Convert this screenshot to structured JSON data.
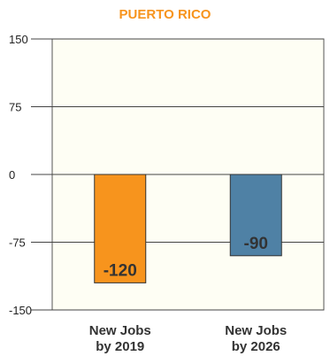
{
  "chart_data": {
    "type": "bar",
    "title": "PUERTO RICO",
    "title_color": "#F7941D",
    "categories": [
      [
        "New Jobs",
        "by 2019"
      ],
      [
        "New Jobs",
        "by 2026"
      ]
    ],
    "values": [
      -120,
      -90
    ],
    "data_labels": [
      "-120",
      "-90"
    ],
    "bar_colors": [
      "#F7941D",
      "#4F81A5"
    ],
    "ylim": [
      -150,
      150
    ],
    "yticks": [
      150,
      75,
      0,
      -75,
      -150
    ],
    "ytick_labels": [
      "150",
      "75",
      "0",
      "-75",
      "-150"
    ],
    "grid": true,
    "xlabel": "",
    "ylabel": ""
  }
}
